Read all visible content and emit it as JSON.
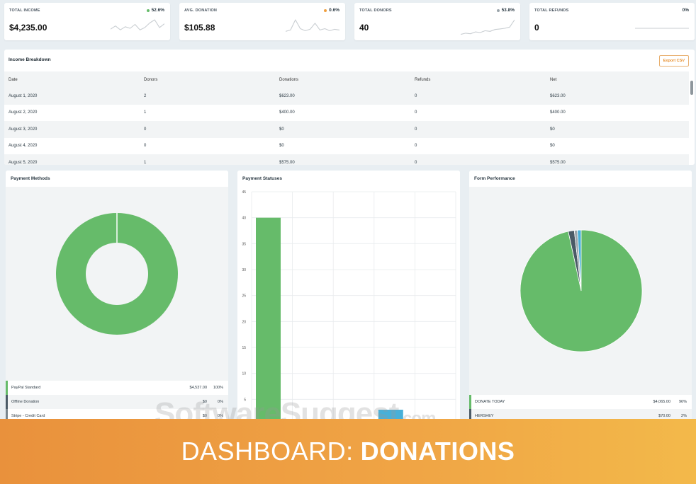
{
  "kpis": [
    {
      "label": "TOTAL INCOME",
      "value": "$4,235.00",
      "change": "52.6%",
      "dot_color": "#66bb6a",
      "spark": [
        10,
        14,
        9,
        13,
        11,
        16,
        9,
        12,
        18,
        22,
        12,
        17
      ]
    },
    {
      "label": "AVG. DONATION",
      "value": "$105.88",
      "change": "0.6%",
      "dot_color": "#f0a040",
      "spark": [
        8,
        10,
        25,
        12,
        9,
        11,
        20,
        10,
        12,
        9,
        11,
        10
      ]
    },
    {
      "label": "TOTAL DONORS",
      "value": "40",
      "change": "53.8%",
      "dot_color": "#9aa4aa",
      "spark": [
        4,
        6,
        5,
        8,
        7,
        10,
        9,
        12,
        13,
        14,
        16,
        28
      ]
    },
    {
      "label": "TOTAL REFUNDS",
      "value": "0",
      "change": "0%",
      "dot_color": "",
      "spark": [
        0,
        0,
        0,
        0,
        0,
        0,
        0,
        0,
        0,
        0,
        0,
        0
      ]
    }
  ],
  "income": {
    "title": "Income Breakdown",
    "export_label": "Export CSV",
    "columns": [
      "Date",
      "Donors",
      "Donations",
      "Refunds",
      "Net"
    ],
    "rows": [
      [
        "August 1, 2020",
        "2",
        "$623.00",
        "0",
        "$623.00"
      ],
      [
        "August 2, 2020",
        "1",
        "$400.00",
        "0",
        "$400.00"
      ],
      [
        "August 3, 2020",
        "0",
        "$0",
        "0",
        "$0"
      ],
      [
        "August 4, 2020",
        "0",
        "$0",
        "0",
        "$0"
      ],
      [
        "August 5, 2020",
        "1",
        "$575.00",
        "0",
        "$575.00"
      ]
    ]
  },
  "payment_methods": {
    "title": "Payment Methods",
    "items": [
      {
        "name": "PayPal Standard",
        "amount": "$4,537.00",
        "pct": "100%",
        "color": "#66bb6a",
        "share": 100
      },
      {
        "name": "Offline Donation",
        "amount": "$0",
        "pct": "0%",
        "color": "#4a5a66",
        "share": 0
      },
      {
        "name": "Stripe - Credit Card",
        "amount": "$0",
        "pct": "0%",
        "color": "#7a868e",
        "share": 0
      }
    ]
  },
  "payment_statuses": {
    "title": "Payment Statuses",
    "chart_data": {
      "type": "bar",
      "ylim": [
        0,
        45
      ],
      "yticks": [
        "0",
        "5",
        "10",
        "15",
        "20",
        "25",
        "30",
        "35",
        "40",
        "45"
      ],
      "values": [
        40,
        1,
        0,
        3,
        0
      ],
      "colors": [
        "#66bb6a",
        "#4a5a66",
        "#9aa4aa",
        "#48b0d8",
        "#f0a040"
      ]
    }
  },
  "form_performance": {
    "title": "Form Performance",
    "items": [
      {
        "name": "DONATE TODAY",
        "amount": "$4,065.00",
        "pct": "96%",
        "color": "#66bb6a",
        "share": 96
      },
      {
        "name": "HERSHEY",
        "amount": "$70.00",
        "pct": "2%",
        "color": "#4a5a66",
        "share": 1.6
      },
      {
        "name": "",
        "amount": "",
        "pct": "",
        "color": "#9aa4aa",
        "share": 0.8
      },
      {
        "name": "",
        "amount": "",
        "pct": "",
        "color": "#48b0d8",
        "share": 1.0
      }
    ]
  },
  "banner": {
    "prefix": "DASHBOARD:",
    "emphasis": "DONATIONS"
  },
  "watermark": {
    "text": "SoftwareSuggest",
    "suffix": ".com"
  }
}
